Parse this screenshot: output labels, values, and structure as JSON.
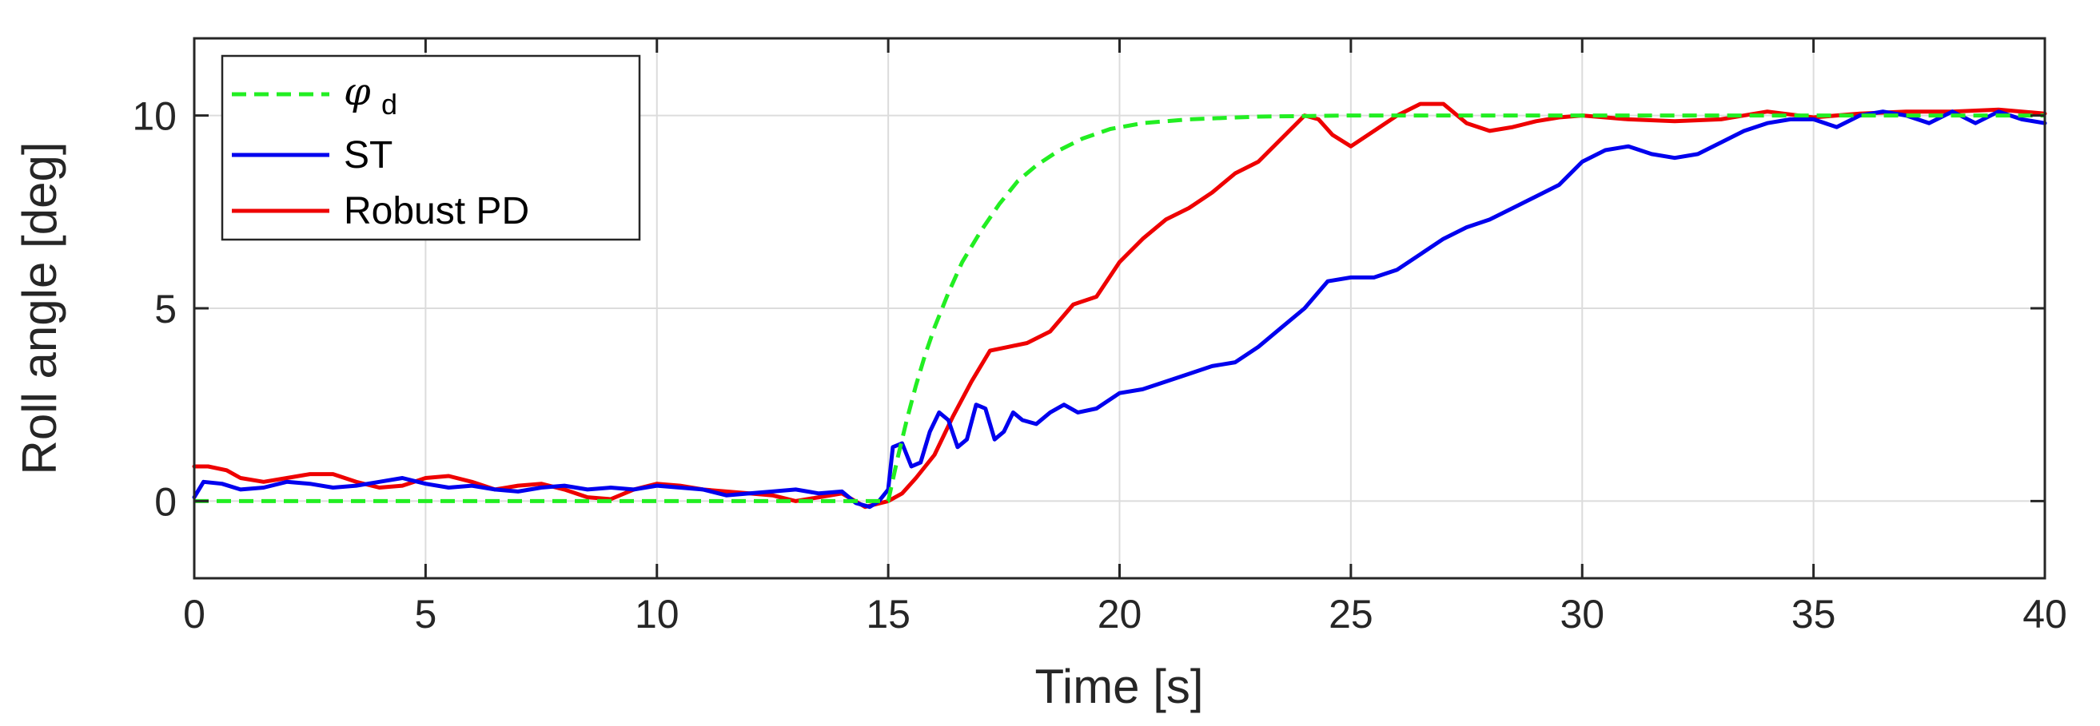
{
  "chart_data": {
    "type": "line",
    "xlabel": "Time [s]",
    "ylabel": "Roll angle [deg]",
    "xlim": [
      0,
      40
    ],
    "ylim": [
      -2,
      12
    ],
    "xticks": [
      0,
      5,
      10,
      15,
      20,
      25,
      30,
      35,
      40
    ],
    "yticks": [
      0,
      5,
      10
    ],
    "grid": true,
    "legend_position": "top-left",
    "series": [
      {
        "name": "φd",
        "name_base": "φ",
        "name_sub": "d",
        "color": "#22ee22",
        "style": "dashed",
        "x": [
          0,
          14.9,
          15.0,
          15.2,
          15.4,
          15.6,
          15.8,
          16.0,
          16.3,
          16.6,
          17.0,
          17.4,
          17.8,
          18.2,
          18.7,
          19.2,
          19.8,
          20.5,
          21.5,
          23.0,
          25.0,
          28.0,
          32.0,
          36.0,
          40.0
        ],
        "y": [
          0,
          0,
          0.0,
          1.1,
          2.1,
          3.0,
          3.8,
          4.5,
          5.4,
          6.2,
          7.0,
          7.7,
          8.3,
          8.7,
          9.1,
          9.4,
          9.65,
          9.8,
          9.9,
          9.97,
          10.0,
          10.0,
          10.0,
          10.0,
          10.0
        ]
      },
      {
        "name": "ST",
        "color": "#0000ee",
        "style": "solid",
        "x": [
          0,
          0.2,
          0.6,
          1.0,
          1.5,
          2.0,
          2.5,
          3.0,
          3.5,
          4.0,
          4.5,
          5.0,
          5.5,
          6.0,
          6.5,
          7.0,
          7.5,
          8.0,
          8.5,
          9.0,
          9.5,
          10.0,
          10.5,
          11.0,
          11.5,
          12.0,
          12.5,
          13.0,
          13.5,
          14.0,
          14.3,
          14.6,
          14.8,
          15.0,
          15.1,
          15.3,
          15.5,
          15.7,
          15.9,
          16.1,
          16.3,
          16.5,
          16.7,
          16.9,
          17.1,
          17.3,
          17.5,
          17.7,
          17.9,
          18.2,
          18.5,
          18.8,
          19.1,
          19.5,
          20.0,
          20.5,
          21.0,
          21.5,
          22.0,
          22.5,
          23.0,
          23.5,
          24.0,
          24.5,
          25.0,
          25.5,
          26.0,
          26.5,
          27.0,
          27.5,
          28.0,
          28.5,
          29.0,
          29.5,
          30.0,
          30.5,
          31.0,
          31.5,
          32.0,
          32.5,
          33.0,
          33.5,
          34.0,
          34.5,
          35.0,
          35.5,
          36.0,
          36.5,
          37.0,
          37.5,
          38.0,
          38.5,
          39.0,
          39.5,
          40.0
        ],
        "y": [
          0.1,
          0.5,
          0.45,
          0.3,
          0.35,
          0.5,
          0.45,
          0.35,
          0.4,
          0.5,
          0.6,
          0.45,
          0.35,
          0.4,
          0.3,
          0.25,
          0.35,
          0.4,
          0.3,
          0.35,
          0.3,
          0.4,
          0.35,
          0.3,
          0.15,
          0.2,
          0.25,
          0.3,
          0.2,
          0.25,
          -0.05,
          -0.15,
          0.0,
          0.3,
          1.4,
          1.5,
          0.9,
          1.0,
          1.8,
          2.3,
          2.1,
          1.4,
          1.6,
          2.5,
          2.4,
          1.6,
          1.8,
          2.3,
          2.1,
          2.0,
          2.3,
          2.5,
          2.3,
          2.4,
          2.8,
          2.9,
          3.1,
          3.3,
          3.5,
          3.6,
          4.0,
          4.5,
          5.0,
          5.7,
          5.8,
          5.8,
          6.0,
          6.4,
          6.8,
          7.1,
          7.3,
          7.6,
          7.9,
          8.2,
          8.8,
          9.1,
          9.2,
          9.0,
          8.9,
          9.0,
          9.3,
          9.6,
          9.8,
          9.9,
          9.9,
          9.7,
          10.0,
          10.1,
          10.0,
          9.8,
          10.1,
          9.8,
          10.1,
          9.9,
          9.8
        ]
      },
      {
        "name": "Robust PD",
        "color": "#ee0000",
        "style": "solid",
        "x": [
          0,
          0.3,
          0.7,
          1.0,
          1.5,
          2.0,
          2.5,
          3.0,
          3.5,
          4.0,
          4.5,
          5.0,
          5.5,
          6.0,
          6.5,
          7.0,
          7.5,
          8.0,
          8.5,
          9.0,
          9.5,
          10.0,
          10.5,
          11.0,
          11.5,
          12.0,
          12.5,
          13.0,
          13.5,
          14.0,
          14.5,
          15.0,
          15.3,
          15.6,
          16.0,
          16.4,
          16.8,
          17.2,
          17.6,
          18.0,
          18.5,
          19.0,
          19.5,
          20.0,
          20.5,
          21.0,
          21.5,
          22.0,
          22.5,
          23.0,
          23.5,
          24.0,
          24.3,
          24.6,
          25.0,
          25.5,
          26.0,
          26.5,
          27.0,
          27.5,
          28.0,
          28.5,
          29.0,
          29.5,
          30.0,
          30.5,
          31.0,
          32.0,
          33.0,
          34.0,
          35.0,
          36.0,
          37.0,
          38.0,
          39.0,
          40.0
        ],
        "y": [
          0.9,
          0.9,
          0.8,
          0.6,
          0.5,
          0.6,
          0.7,
          0.7,
          0.5,
          0.35,
          0.4,
          0.6,
          0.65,
          0.5,
          0.3,
          0.4,
          0.45,
          0.3,
          0.1,
          0.05,
          0.3,
          0.45,
          0.4,
          0.3,
          0.25,
          0.2,
          0.15,
          0.0,
          0.1,
          0.2,
          -0.15,
          0.0,
          0.2,
          0.6,
          1.2,
          2.2,
          3.1,
          3.9,
          4.0,
          4.1,
          4.4,
          5.1,
          5.3,
          6.2,
          6.8,
          7.3,
          7.6,
          8.0,
          8.5,
          8.8,
          9.4,
          10.0,
          9.9,
          9.5,
          9.2,
          9.6,
          10.0,
          10.3,
          10.3,
          9.8,
          9.6,
          9.7,
          9.85,
          9.95,
          10.0,
          9.95,
          9.9,
          9.85,
          9.9,
          10.1,
          9.95,
          10.05,
          10.1,
          10.1,
          10.15,
          10.05
        ]
      }
    ]
  }
}
